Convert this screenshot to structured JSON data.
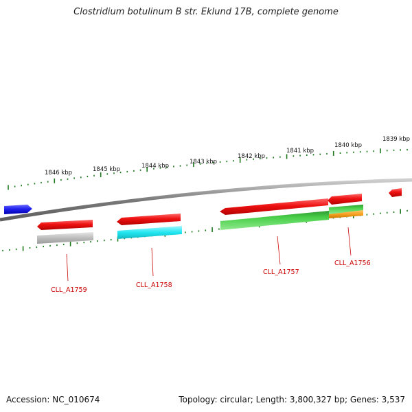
{
  "title": "Clostridium botulinum B str. Eklund 17B, complete genome",
  "footer": {
    "accession": "Accession: NC_010674",
    "topology": "Topology: circular; Length: 3,800,327 bp; Genes: 3,537"
  },
  "scale_labels": [
    "1846 kbp",
    "1845 kbp",
    "1844 kbp",
    "1843 kbp",
    "1842 kbp",
    "1841 kbp",
    "1840 kbp",
    "1839 kbp"
  ],
  "gene_labels": [
    "CLL_A1759",
    "CLL_A1758",
    "CLL_A1757",
    "CLL_A1756"
  ],
  "colors": {
    "backbone": "#8a8a8a",
    "tick": "#1f7a1f",
    "gene_forward": "#2222ee",
    "gene_reverse": "#ee1111",
    "cds_gray": "#b8b8b8",
    "cds_cyan": "#22e6f0",
    "cds_green": "#44cc44",
    "cds_orange": "#f5a020",
    "label": "#cc0000"
  }
}
